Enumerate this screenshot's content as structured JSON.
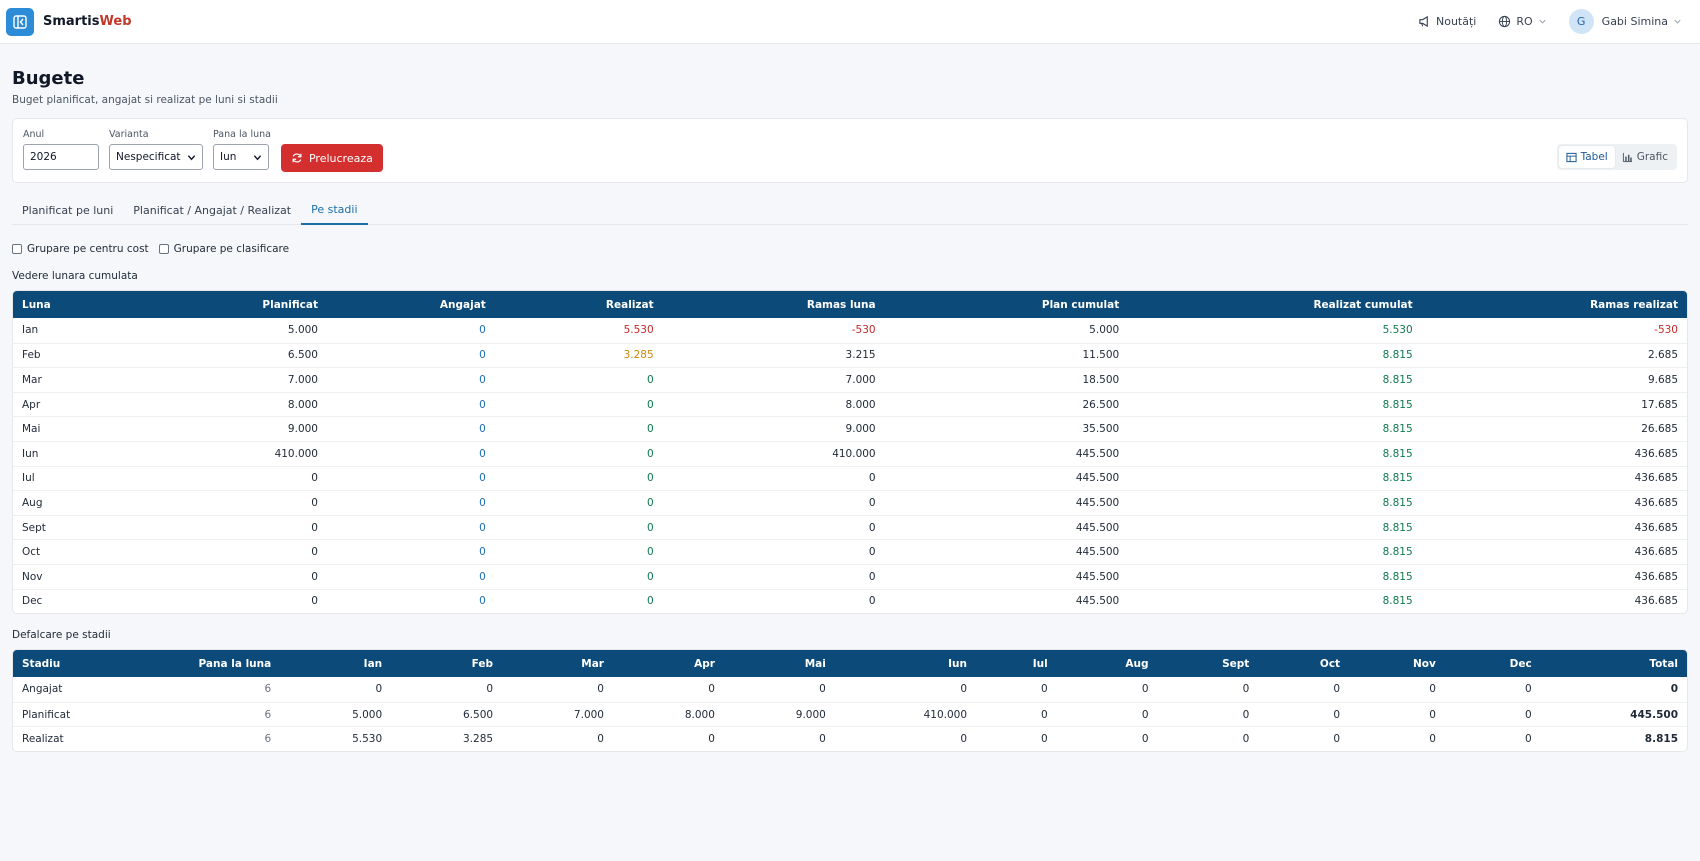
{
  "header": {
    "brand_main": "Smartis",
    "brand_accent": "Web",
    "news_label": "Noutăți",
    "language": "RO",
    "user_initial": "G",
    "user_name": "Gabi Simina"
  },
  "page": {
    "title": "Bugete",
    "subtitle": "Buget planificat, angajat si realizat pe luni si stadii"
  },
  "filters": {
    "year_label": "Anul",
    "year_value": "2026",
    "variant_label": "Varianta",
    "variant_value": "Nespecificat",
    "month_label": "Pana la luna",
    "month_value": "Iun",
    "run_button": "Prelucreaza",
    "view_table": "Tabel",
    "view_chart": "Grafic"
  },
  "tabs": [
    "Planificat pe luni",
    "Planificat / Angajat / Realizat",
    "Pe stadii"
  ],
  "active_tab": 2,
  "checkboxes": [
    "Grupare pe centru cost",
    "Grupare pe clasificare"
  ],
  "monthly": {
    "title": "Vedere lunara cumulata",
    "headers": [
      "Luna",
      "Planificat",
      "Angajat",
      "Realizat",
      "Ramas luna",
      "Plan cumulat",
      "Realizat cumulat",
      "Ramas realizat"
    ],
    "rows": [
      [
        "Ian",
        "5.000",
        "0",
        "5.530",
        "-530",
        "5.000",
        "5.530",
        "-530"
      ],
      [
        "Feb",
        "6.500",
        "0",
        "3.285",
        "3.215",
        "11.500",
        "8.815",
        "2.685"
      ],
      [
        "Mar",
        "7.000",
        "0",
        "0",
        "7.000",
        "18.500",
        "8.815",
        "9.685"
      ],
      [
        "Apr",
        "8.000",
        "0",
        "0",
        "8.000",
        "26.500",
        "8.815",
        "17.685"
      ],
      [
        "Mai",
        "9.000",
        "0",
        "0",
        "9.000",
        "35.500",
        "8.815",
        "26.685"
      ],
      [
        "Iun",
        "410.000",
        "0",
        "0",
        "410.000",
        "445.500",
        "8.815",
        "436.685"
      ],
      [
        "Iul",
        "0",
        "0",
        "0",
        "0",
        "445.500",
        "8.815",
        "436.685"
      ],
      [
        "Aug",
        "0",
        "0",
        "0",
        "0",
        "445.500",
        "8.815",
        "436.685"
      ],
      [
        "Sept",
        "0",
        "0",
        "0",
        "0",
        "445.500",
        "8.815",
        "436.685"
      ],
      [
        "Oct",
        "0",
        "0",
        "0",
        "0",
        "445.500",
        "8.815",
        "436.685"
      ],
      [
        "Nov",
        "0",
        "0",
        "0",
        "0",
        "445.500",
        "8.815",
        "436.685"
      ],
      [
        "Dec",
        "0",
        "0",
        "0",
        "0",
        "445.500",
        "8.815",
        "436.685"
      ]
    ]
  },
  "stages": {
    "title": "Defalcare pe stadii",
    "headers": [
      "Stadiu",
      "Pana la luna",
      "Ian",
      "Feb",
      "Mar",
      "Apr",
      "Mai",
      "Iun",
      "Iul",
      "Aug",
      "Sept",
      "Oct",
      "Nov",
      "Dec",
      "Total"
    ],
    "rows": [
      [
        "Angajat",
        "6",
        "0",
        "0",
        "0",
        "0",
        "0",
        "0",
        "0",
        "0",
        "0",
        "0",
        "0",
        "0",
        "0"
      ],
      [
        "Planificat",
        "6",
        "5.000",
        "6.500",
        "7.000",
        "8.000",
        "9.000",
        "410.000",
        "0",
        "0",
        "0",
        "0",
        "0",
        "0",
        "445.500"
      ],
      [
        "Realizat",
        "6",
        "5.530",
        "3.285",
        "0",
        "0",
        "0",
        "0",
        "0",
        "0",
        "0",
        "0",
        "0",
        "0",
        "8.815"
      ]
    ]
  },
  "colors": {
    "primary_header": "#0c4a7a",
    "accent_red": "#d32f2f",
    "link_blue": "#1f6fb0",
    "positive_green": "#0e7a4d",
    "warning_orange": "#c98a0a"
  }
}
